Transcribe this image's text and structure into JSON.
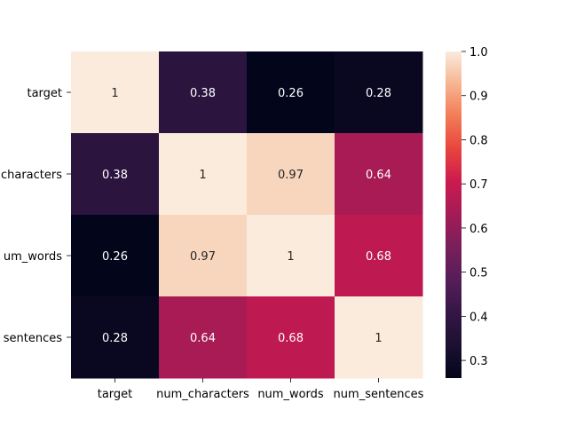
{
  "chart_data": {
    "type": "heatmap",
    "title": "",
    "xlabel": "",
    "ylabel": "",
    "x_categories": [
      "target",
      "num_characters",
      "num_words",
      "num_sentences"
    ],
    "y_categories": [
      "target",
      "num_characters",
      "num_words",
      "num_sentences"
    ],
    "y_tick_labels_visible": [
      "target",
      "characters",
      "um_words",
      "sentences"
    ],
    "values": [
      [
        1,
        0.38,
        0.26,
        0.28
      ],
      [
        0.38,
        1,
        0.97,
        0.64
      ],
      [
        0.26,
        0.97,
        1,
        0.68
      ],
      [
        0.28,
        0.64,
        0.68,
        1
      ]
    ],
    "cell_labels": [
      [
        "1",
        "0.38",
        "0.26",
        "0.28"
      ],
      [
        "0.38",
        "1",
        "0.97",
        "0.64"
      ],
      [
        "0.26",
        "0.97",
        "1",
        "0.68"
      ],
      [
        "0.28",
        "0.64",
        "0.68",
        "1"
      ]
    ],
    "colorbar": {
      "colormap": "rocket",
      "vmin": 0.26,
      "vmax": 1.0,
      "ticks": [
        0.3,
        0.4,
        0.5,
        0.6,
        0.7,
        0.8,
        0.9,
        1.0
      ],
      "tick_labels": [
        "0.3",
        "0.4",
        "0.5",
        "0.6",
        "0.7",
        "0.8",
        "0.9",
        "1.0"
      ]
    },
    "grid": false
  }
}
